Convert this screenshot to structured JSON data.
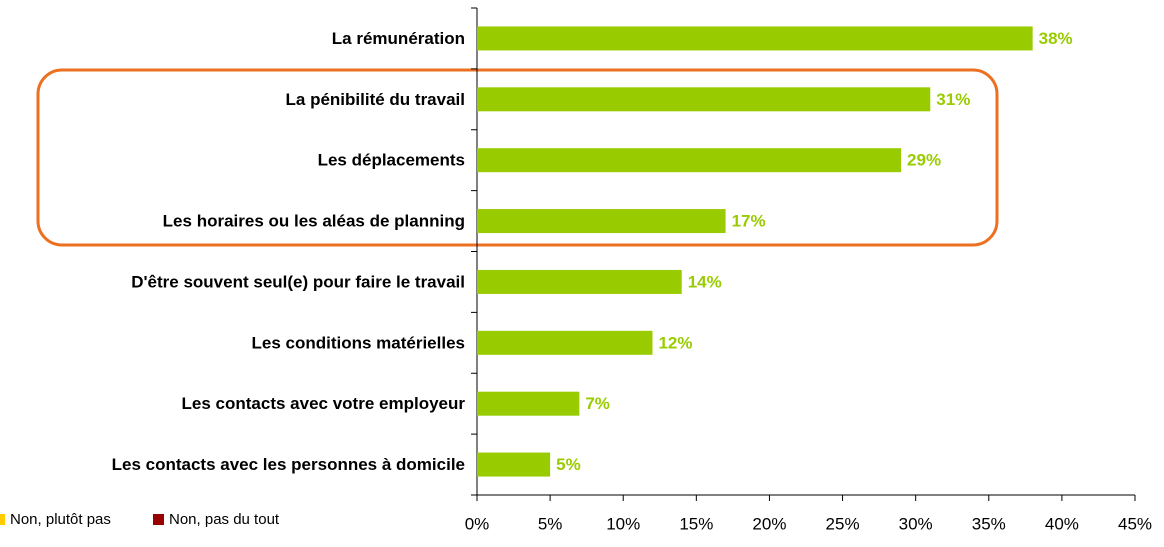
{
  "chart_data": {
    "type": "hbar",
    "categories": [
      "La rémunération",
      "La pénibilité du travail",
      "Les déplacements",
      "Les horaires ou les aléas de planning",
      "D'être souvent seul(e) pour faire le travail",
      "Les conditions matérielles",
      "Les contacts avec votre employeur",
      "Les contacts avec les personnes à domicile"
    ],
    "values": [
      38,
      31,
      29,
      17,
      14,
      12,
      7,
      5
    ],
    "value_labels": [
      "38%",
      "31%",
      "29%",
      "17%",
      "14%",
      "12%",
      "7%",
      "5%"
    ],
    "color": "#99cc00",
    "xlim": [
      0,
      45
    ],
    "xticks": [
      {
        "value": 0,
        "label": "0%"
      },
      {
        "value": 5,
        "label": "5%"
      },
      {
        "value": 10,
        "label": "10%"
      },
      {
        "value": 15,
        "label": "15%"
      },
      {
        "value": 20,
        "label": "20%"
      },
      {
        "value": 25,
        "label": "25%"
      },
      {
        "value": 30,
        "label": "30%"
      },
      {
        "value": 35,
        "label": "35%"
      },
      {
        "value": 40,
        "label": "40%"
      },
      {
        "value": 45,
        "label": "45%"
      }
    ],
    "grid": false,
    "legend": [
      {
        "name": "Non, plutôt pas",
        "color": "#ffcc00"
      },
      {
        "name": "Non, pas du tout",
        "color": "#990000"
      }
    ]
  }
}
